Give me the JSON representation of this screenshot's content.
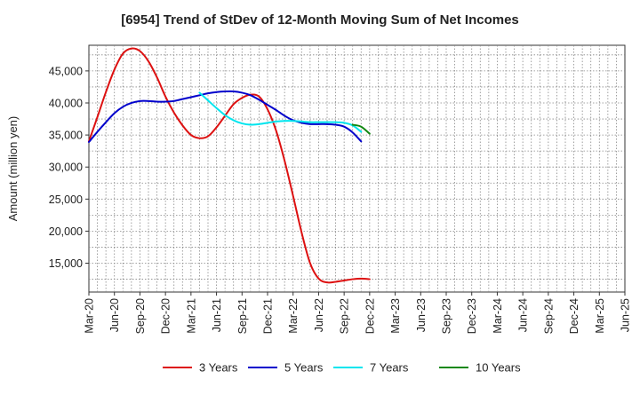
{
  "chart_data": {
    "type": "line",
    "title": "[6954]  Trend of StDev of 12-Month Moving Sum of Net Incomes",
    "xlabel": "",
    "ylabel": "Amount (million yen)",
    "ylim": [
      10500,
      49000
    ],
    "y_ticks": [
      15000,
      20000,
      25000,
      30000,
      35000,
      40000,
      45000
    ],
    "y_tick_labels": [
      "15,000",
      "20,000",
      "25,000",
      "30,000",
      "35,000",
      "40,000",
      "45,000"
    ],
    "x_tick_labels": [
      "Mar-20",
      "Jun-20",
      "Sep-20",
      "Dec-20",
      "Mar-21",
      "Jun-21",
      "Sep-21",
      "Dec-21",
      "Mar-22",
      "Jun-22",
      "Sep-22",
      "Dec-22",
      "Mar-23",
      "Jun-23",
      "Sep-23",
      "Dec-23",
      "Mar-24",
      "Jun-24",
      "Sep-24",
      "Dec-24",
      "Mar-25",
      "Jun-25"
    ],
    "grid": true,
    "legend_position": "bottom",
    "series": [
      {
        "name": "3 Years",
        "color": "#dd1111",
        "values": [
          34000,
          37800,
          41700,
          45200,
          47700,
          48500,
          48100,
          46500,
          44000,
          41000,
          38500,
          36500,
          35000,
          34500,
          34800,
          36200,
          38000,
          39800,
          40800,
          41300,
          41000,
          39000,
          35700,
          31000,
          25500,
          19800,
          15000,
          12600,
          12000,
          12100,
          12300,
          12500,
          12600,
          12500
        ]
      },
      {
        "name": "5 Years",
        "color": "#0000cc",
        "values": [
          33900,
          35500,
          37000,
          38400,
          39400,
          40000,
          40300,
          40300,
          40200,
          40200,
          40300,
          40600,
          40900,
          41200,
          41500,
          41700,
          41800,
          41800,
          41600,
          41200,
          40500,
          39700,
          38900,
          38000,
          37300,
          36900,
          36700,
          36700,
          36700,
          36600,
          36300,
          35400,
          34000
        ]
      },
      {
        "name": "7 Years",
        "color": "#00e5ee",
        "offset": 13,
        "values": [
          41600,
          40400,
          39200,
          38100,
          37300,
          36800,
          36600,
          36700,
          36900,
          37100,
          37200,
          37200,
          37100,
          37000,
          37000,
          37000,
          37000,
          36900,
          36500,
          35500
        ]
      },
      {
        "name": "10 Years",
        "color": "#118811",
        "offset": 31,
        "values": [
          36600,
          36300,
          35200
        ]
      }
    ]
  }
}
